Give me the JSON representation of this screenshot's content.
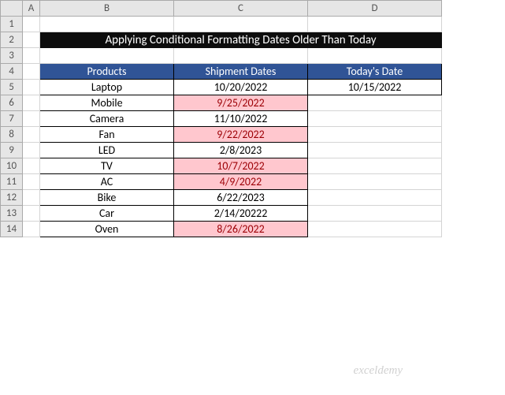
{
  "columns": [
    "A",
    "B",
    "C",
    "D"
  ],
  "rowCount": 14,
  "title": "Applying Conditional Formatting Dates Older Than Today",
  "headers": {
    "products": "Products",
    "shipment": "Shipment Dates",
    "today": "Today's Date"
  },
  "todaysDate": "10/15/2022",
  "rows": [
    {
      "product": "Laptop",
      "date": "10/20/2022",
      "highlight": false
    },
    {
      "product": "Mobile",
      "date": "9/25/2022",
      "highlight": true
    },
    {
      "product": "Camera",
      "date": "11/10/2022",
      "highlight": false
    },
    {
      "product": "Fan",
      "date": "9/22/2022",
      "highlight": true
    },
    {
      "product": "LED",
      "date": "2/8/2023",
      "highlight": false
    },
    {
      "product": "TV",
      "date": "10/7/2022",
      "highlight": true
    },
    {
      "product": "AC",
      "date": "4/9/2022",
      "highlight": true
    },
    {
      "product": "Bike",
      "date": "6/22/2023",
      "highlight": false
    },
    {
      "product": "Car",
      "date": "2/14/20222",
      "highlight": false
    },
    {
      "product": "Oven",
      "date": "8/26/2022",
      "highlight": true
    }
  ],
  "watermark": "exceldemy",
  "styling": {
    "titleBg": "#0d0d0d",
    "titleColor": "#ffffff",
    "headerBg": "#305496",
    "headerColor": "#ffffff",
    "highlightBg": "#ffc7ce",
    "highlightColor": "#9c0006",
    "gridBorder": "#d4d4d4",
    "dataBorder": "#000000"
  }
}
